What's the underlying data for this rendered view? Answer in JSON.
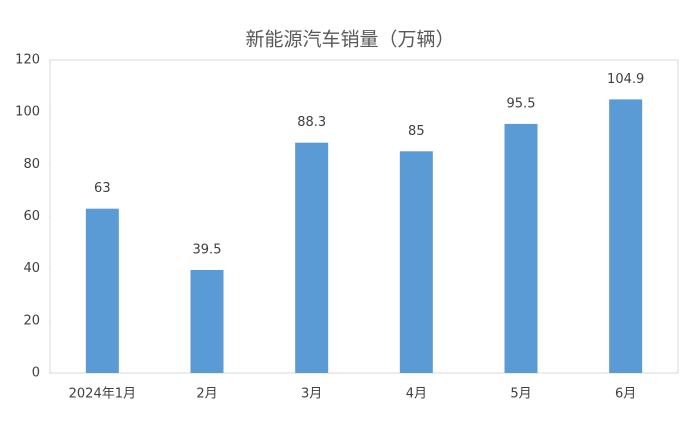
{
  "chart_data": {
    "type": "bar",
    "title": "新能源汽车销量（万辆）",
    "categories": [
      "2024年1月",
      "2月",
      "3月",
      "4月",
      "5月",
      "6月"
    ],
    "values": [
      63,
      39.5,
      88.3,
      85,
      95.5,
      104.9
    ],
    "color": "#5b9bd5",
    "ylim": [
      0,
      120
    ],
    "yticks": [
      0,
      20,
      40,
      60,
      80,
      100,
      120
    ],
    "grid": false
  }
}
